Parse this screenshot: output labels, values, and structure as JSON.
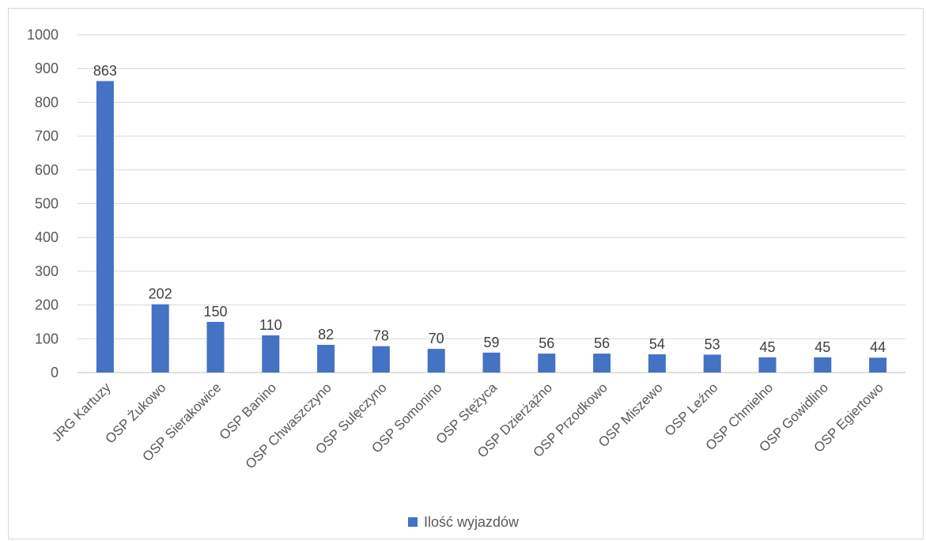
{
  "chart_data": {
    "type": "bar",
    "categories": [
      "JRG Kartuzy",
      "OSP Żukowo",
      "OSP Sierakowice",
      "OSP Banino",
      "OSP Chwaszczyno",
      "OSP Sulęczyno",
      "OSP Somonino",
      "OSP Stężyca",
      "OSP Dzierżążno",
      "OSP Przodkowo",
      "OSP Miszewo",
      "OSP Leźno",
      "OSP Chmielno",
      "OSP Gowidlino",
      "OSP Egiertowo"
    ],
    "series": [
      {
        "name": "Ilość wyjazdów",
        "values": [
          863,
          202,
          150,
          110,
          82,
          78,
          70,
          59,
          56,
          56,
          54,
          53,
          45,
          45,
          44
        ],
        "color": "#4472c4"
      }
    ],
    "yticks": [
      "0",
      "100",
      "200",
      "300",
      "400",
      "500",
      "600",
      "700",
      "800",
      "900",
      "1000"
    ],
    "ylim": [
      0,
      1000
    ],
    "grid": true,
    "legend_position": "bottom"
  }
}
